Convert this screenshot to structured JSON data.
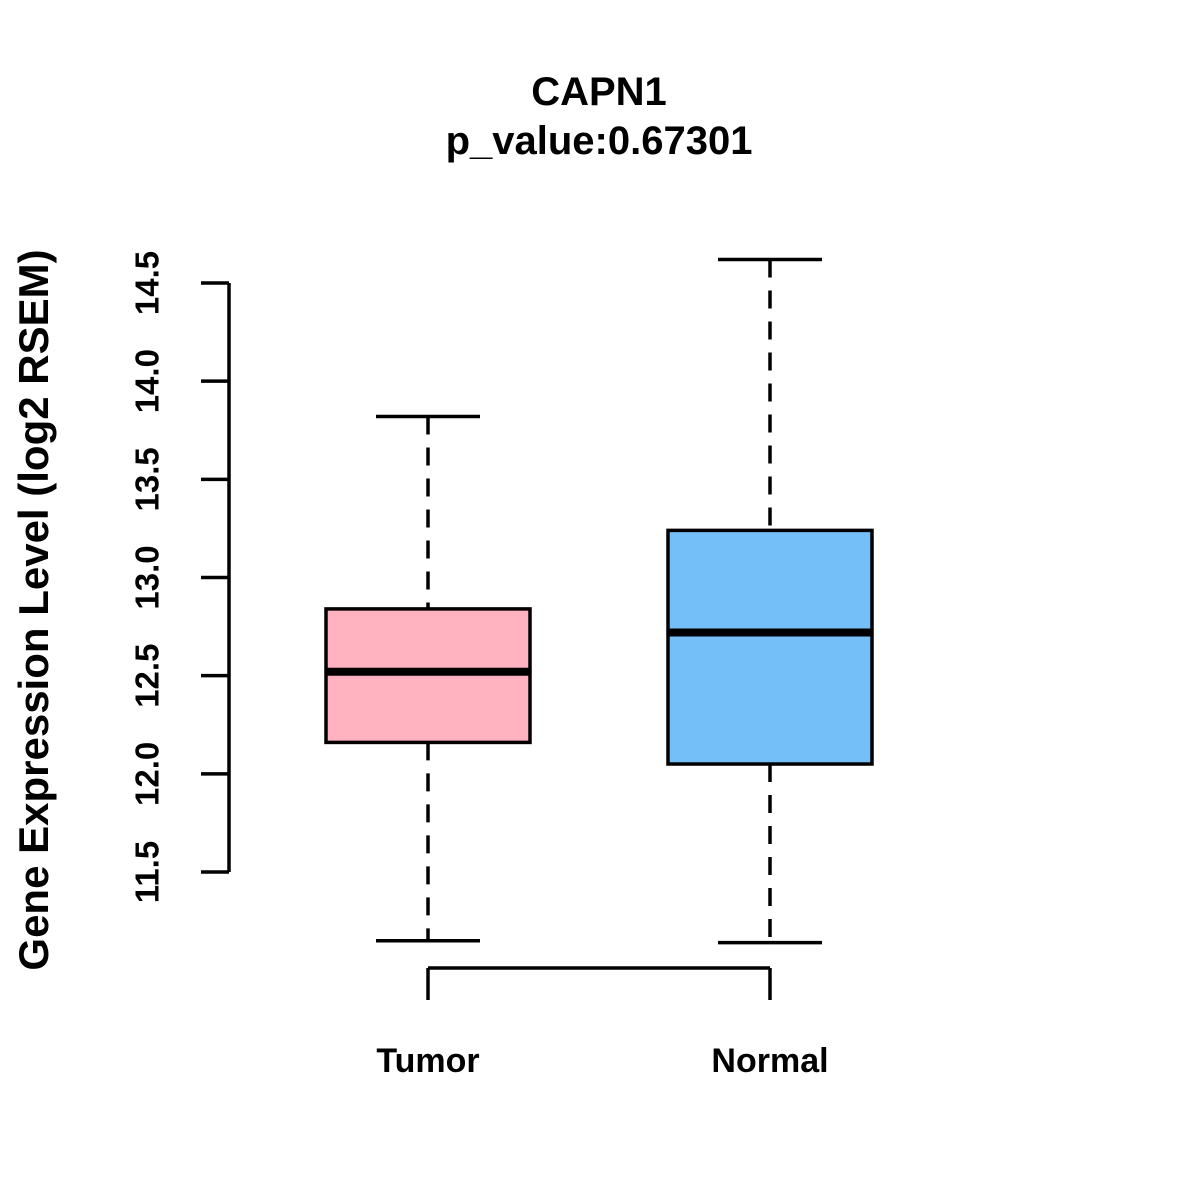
{
  "title": "CAPN1",
  "subtitle": "p_value:0.67301",
  "colors": {
    "tumor_fill": "#FFB3C1",
    "normal_fill": "#74BFF7",
    "stroke": "#000000",
    "background": "#FFFFFF"
  },
  "chart_data": {
    "type": "boxplot",
    "title": "CAPN1",
    "subtitle": "p_value:0.67301",
    "ylabel": "Gene Expression Level (log2 RSEM)",
    "categories": [
      "Tumor",
      "Normal"
    ],
    "y_ticks": [
      "11.5",
      "12.0",
      "12.5",
      "13.0",
      "13.5",
      "14.0",
      "14.5"
    ],
    "axis_ylim": [
      11.5,
      14.5
    ],
    "data_ylim": [
      11.14,
      14.62
    ],
    "grid": "off",
    "legend": "none",
    "series": [
      {
        "name": "Tumor",
        "lower_whisker": 11.15,
        "q1": 12.16,
        "median": 12.52,
        "q3": 12.84,
        "upper_whisker": 13.82,
        "color": "#FFB3C1"
      },
      {
        "name": "Normal",
        "lower_whisker": 11.14,
        "q1": 12.05,
        "median": 12.72,
        "q3": 13.24,
        "upper_whisker": 14.62,
        "color": "#74BFF7"
      }
    ]
  }
}
